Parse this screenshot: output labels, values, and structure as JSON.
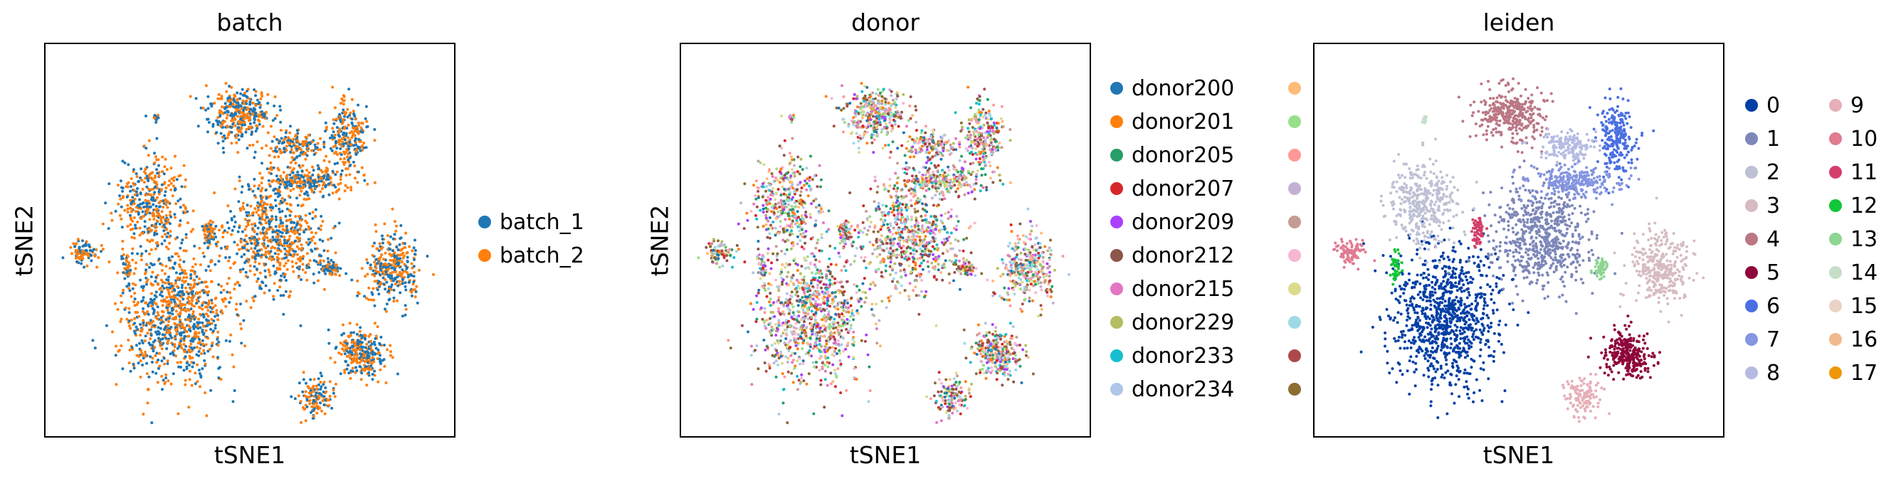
{
  "panels": [
    {
      "title": "batch",
      "xlabel": "tSNE1",
      "ylabel": "tSNE2",
      "legend": [
        {
          "label": "batch_1",
          "color": "#1f77b4"
        },
        {
          "label": "batch_2",
          "color": "#ff7f0e"
        }
      ]
    },
    {
      "title": "donor",
      "xlabel": "tSNE1",
      "ylabel": "tSNE2",
      "legend": [
        {
          "label": "donor200",
          "color": "#1f77b4"
        },
        {
          "label": "donor201",
          "color": "#ff7f0e"
        },
        {
          "label": "donor205",
          "color": "#279e68"
        },
        {
          "label": "donor207",
          "color": "#d62728"
        },
        {
          "label": "donor209",
          "color": "#aa40fc"
        },
        {
          "label": "donor212",
          "color": "#8c564b"
        },
        {
          "label": "donor215",
          "color": "#e377c2"
        },
        {
          "label": "donor229",
          "color": "#b5bd61"
        },
        {
          "label": "donor233",
          "color": "#17becf"
        },
        {
          "label": "donor234",
          "color": "#aec7e8"
        },
        {
          "label": "",
          "color": "#ffbb78"
        },
        {
          "label": "",
          "color": "#98df8a"
        },
        {
          "label": "",
          "color": "#ff9896"
        },
        {
          "label": "",
          "color": "#c5b0d5"
        },
        {
          "label": "",
          "color": "#c49c94"
        },
        {
          "label": "",
          "color": "#f7b6d2"
        },
        {
          "label": "",
          "color": "#dbdb8d"
        },
        {
          "label": "",
          "color": "#9edae5"
        },
        {
          "label": "",
          "color": "#ad494a"
        },
        {
          "label": "",
          "color": "#8c6d31"
        }
      ]
    },
    {
      "title": "leiden",
      "xlabel": "tSNE1",
      "ylabel": "",
      "legend": [
        {
          "label": "0",
          "color": "#023fa5"
        },
        {
          "label": "1",
          "color": "#7d87b9"
        },
        {
          "label": "2",
          "color": "#bec1d4"
        },
        {
          "label": "3",
          "color": "#d6bcc0"
        },
        {
          "label": "4",
          "color": "#bb7784"
        },
        {
          "label": "5",
          "color": "#8e063b"
        },
        {
          "label": "6",
          "color": "#4a6fe3"
        },
        {
          "label": "7",
          "color": "#8595e1"
        },
        {
          "label": "8",
          "color": "#b5bbe3"
        },
        {
          "label": "9",
          "color": "#e6afb9"
        },
        {
          "label": "10",
          "color": "#e07b91"
        },
        {
          "label": "11",
          "color": "#d33f6a"
        },
        {
          "label": "12",
          "color": "#11c638"
        },
        {
          "label": "13",
          "color": "#8dd593"
        },
        {
          "label": "14",
          "color": "#c6dec7"
        },
        {
          "label": "15",
          "color": "#ead3c6"
        },
        {
          "label": "16",
          "color": "#f0b98d"
        },
        {
          "label": "17",
          "color": "#ef9708"
        }
      ]
    }
  ],
  "chart_data": [
    {
      "type": "scatter",
      "title": "batch",
      "xlabel": "tSNE1",
      "ylabel": "tSNE2",
      "legend_position": "right",
      "grid": false,
      "ticks": false,
      "colored_by": "batch",
      "categories": [
        "batch_1",
        "batch_2"
      ],
      "colors": [
        "#1f77b4",
        "#ff7f0e"
      ]
    },
    {
      "type": "scatter",
      "title": "donor",
      "xlabel": "tSNE1",
      "ylabel": "tSNE2",
      "legend_position": "right",
      "grid": false,
      "ticks": false,
      "colored_by": "donor",
      "categories": [
        "donor200",
        "donor201",
        "donor205",
        "donor207",
        "donor209",
        "donor212",
        "donor215",
        "donor229",
        "donor233",
        "donor234"
      ]
    },
    {
      "type": "scatter",
      "title": "leiden",
      "xlabel": "tSNE1",
      "ylabel": "",
      "legend_position": "right",
      "grid": false,
      "ticks": false,
      "colored_by": "leiden",
      "categories": [
        "0",
        "1",
        "2",
        "3",
        "4",
        "5",
        "6",
        "7",
        "8",
        "9",
        "10",
        "11",
        "12",
        "13",
        "14",
        "15",
        "16",
        "17"
      ]
    }
  ]
}
